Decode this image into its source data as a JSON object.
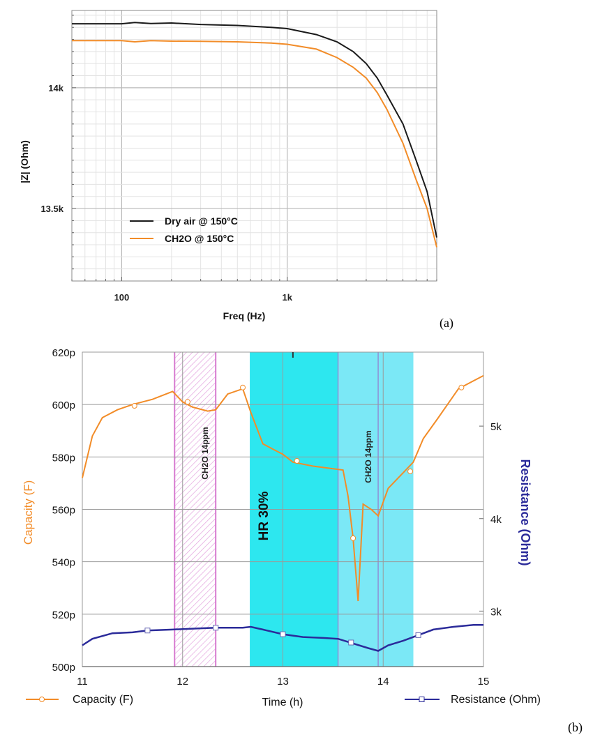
{
  "chart_data": [
    {
      "type": "line",
      "xlabel": "Freq (Hz)",
      "ylabel": "|Z| (Ohm)",
      "x_scale": "log",
      "xlim": [
        50,
        8000
      ],
      "ylim": [
        13200,
        14320
      ],
      "x_ticks": [
        {
          "value": 100,
          "label": "100"
        },
        {
          "value": 1000,
          "label": "1k"
        }
      ],
      "y_ticks": [
        {
          "value": 14000,
          "label": "14k"
        },
        {
          "value": 13500,
          "label": "13.5k"
        }
      ],
      "grid": true,
      "legend_position": "bottom-left",
      "series": [
        {
          "name": "Dry air @ 150°C",
          "color": "#1a1a1a",
          "x": [
            50,
            100,
            120,
            150,
            200,
            300,
            500,
            800,
            1000,
            1500,
            2000,
            2500,
            3000,
            3500,
            4000,
            5000,
            6000,
            7000,
            8000
          ],
          "y": [
            14265,
            14265,
            14270,
            14266,
            14268,
            14262,
            14258,
            14250,
            14245,
            14220,
            14190,
            14150,
            14100,
            14040,
            13970,
            13850,
            13700,
            13570,
            13380
          ]
        },
        {
          "name": "CH2O @ 150°C",
          "color": "#f28c28",
          "x": [
            50,
            100,
            120,
            150,
            200,
            300,
            500,
            800,
            1000,
            1500,
            2000,
            2500,
            3000,
            3500,
            4000,
            5000,
            6000,
            7000,
            8000
          ],
          "y": [
            14195,
            14195,
            14190,
            14195,
            14193,
            14192,
            14190,
            14185,
            14180,
            14160,
            14125,
            14085,
            14040,
            13980,
            13910,
            13770,
            13620,
            13500,
            13340
          ]
        }
      ],
      "panel_label": "(a)"
    },
    {
      "type": "line",
      "xlabel": "Time (h)",
      "ylabel": "Capacity (F)",
      "ylabel_right": "Resistance (Ohm)",
      "xlim": [
        11,
        15
      ],
      "ylim": [
        500,
        620
      ],
      "ylim_right": [
        2400,
        5800
      ],
      "x_ticks": [
        {
          "value": 11,
          "label": "11"
        },
        {
          "value": 12,
          "label": "12"
        },
        {
          "value": 13,
          "label": "13"
        },
        {
          "value": 14,
          "label": "14"
        },
        {
          "value": 15,
          "label": "15"
        }
      ],
      "y_ticks": [
        {
          "value": 500,
          "label": "500p"
        },
        {
          "value": 520,
          "label": "520p"
        },
        {
          "value": 540,
          "label": "540p"
        },
        {
          "value": 560,
          "label": "560p"
        },
        {
          "value": 580,
          "label": "580p"
        },
        {
          "value": 600,
          "label": "600p"
        },
        {
          "value": 620,
          "label": "620p"
        }
      ],
      "y_ticks_right": [
        {
          "value": 3000,
          "label": "3k"
        },
        {
          "value": 4000,
          "label": "4k"
        },
        {
          "value": 5000,
          "label": "5k"
        }
      ],
      "grid": true,
      "legend_position": "bottom",
      "series": [
        {
          "name": "Capacity (F)",
          "axis": "left",
          "color": "#f28c28",
          "x": [
            11,
            11.1,
            11.2,
            11.35,
            11.5,
            11.7,
            11.9,
            12.0,
            12.1,
            12.25,
            12.33,
            12.45,
            12.6,
            12.68,
            12.8,
            12.9,
            13.0,
            13.1,
            13.3,
            13.5,
            13.6,
            13.65,
            13.7,
            13.75,
            13.8,
            13.88,
            13.95,
            14.05,
            14.2,
            14.3,
            14.4,
            14.55,
            14.75,
            14.9,
            15.0
          ],
          "y": [
            572,
            588,
            595,
            598,
            600,
            602,
            605,
            601,
            599,
            597.5,
            598,
            604,
            606,
            597,
            585,
            583,
            581,
            578,
            576.5,
            575.5,
            575,
            565,
            549,
            525,
            562,
            560,
            557.5,
            568,
            574,
            578,
            587,
            595,
            606,
            609,
            611
          ]
        },
        {
          "name": "Resistance (Ohm)",
          "axis": "right",
          "color": "#2b2b9a",
          "x": [
            11,
            11.1,
            11.3,
            11.5,
            11.65,
            11.9,
            12.1,
            12.33,
            12.5,
            12.6,
            12.68,
            12.8,
            13.0,
            13.2,
            13.4,
            13.55,
            13.7,
            13.85,
            13.95,
            14.05,
            14.2,
            14.35,
            14.5,
            14.7,
            14.9,
            15.0
          ],
          "y": [
            2630,
            2700,
            2760,
            2770,
            2790,
            2800,
            2810,
            2820,
            2820,
            2820,
            2830,
            2800,
            2750,
            2720,
            2710,
            2700,
            2650,
            2600,
            2570,
            2630,
            2680,
            2740,
            2800,
            2830,
            2850,
            2850
          ]
        }
      ],
      "markers_capacity": [
        {
          "x": 11.52,
          "y": 599.5
        },
        {
          "x": 12.05,
          "y": 601
        },
        {
          "x": 12.6,
          "y": 606.5
        },
        {
          "x": 13.14,
          "y": 578.5
        },
        {
          "x": 13.7,
          "y": 549
        },
        {
          "x": 14.27,
          "y": 574.5
        },
        {
          "x": 14.78,
          "y": 606.5
        }
      ],
      "markers_resistance": [
        {
          "x": 11.65,
          "y": 2790
        },
        {
          "x": 12.33,
          "y": 2820
        },
        {
          "x": 13.0,
          "y": 2750
        },
        {
          "x": 13.68,
          "y": 2660
        },
        {
          "x": 14.35,
          "y": 2740
        }
      ],
      "regions": [
        {
          "x0": 11.92,
          "x1": 12.33,
          "kind": "hatched",
          "label": "CH2O 14ppm",
          "color": "#d77ad0"
        },
        {
          "x0": 12.67,
          "x1": 14.3,
          "kind": "fill",
          "label": "HR 30%",
          "color": "#22e6ee"
        },
        {
          "x0": 13.55,
          "x1": 14.3,
          "kind": "fill",
          "label": "CH2O 14ppm",
          "color": "#7fe8f5"
        }
      ],
      "annotations": [
        "CH2O 14ppm",
        "HR 30%",
        "CH2O 14ppm"
      ],
      "panel_label": "(b)"
    }
  ]
}
